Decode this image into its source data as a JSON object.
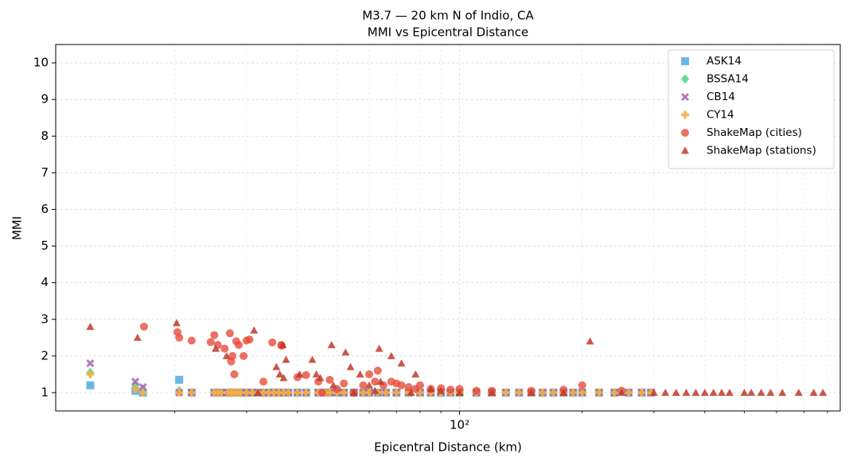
{
  "chart_data": {
    "type": "scatter",
    "title": "M3.7 — 20 km N of Indio, CA",
    "subtitle": "MMI vs Epicentral Distance",
    "x_label": "Epicentral Distance (km)",
    "y_label": "MMI",
    "xscale": "log",
    "xlim": [
      10.2,
      860
    ],
    "xticks": [
      {
        "value": 100,
        "label": "10²"
      }
    ],
    "xminorticks": [
      20,
      30,
      40,
      50,
      60,
      70,
      80,
      90,
      200,
      300,
      400,
      500,
      600,
      700,
      800
    ],
    "ylim": [
      0.5,
      10.5
    ],
    "yticks": [
      1,
      2,
      3,
      4,
      5,
      6,
      7,
      8,
      9,
      10
    ],
    "grid": true,
    "legend": "upper right",
    "series": [
      {
        "name": "ASK14",
        "color": "#5dade2",
        "marker": "square",
        "x": [
          12.4,
          16.0,
          16.7,
          20.5,
          22.0,
          25.0,
          25.5,
          26.0,
          27.0,
          27.5,
          28.0,
          28.5,
          29.0,
          30.0,
          31.0,
          32.0,
          33.0,
          34.0,
          35.0,
          36.0,
          37.0,
          38.0,
          40.0,
          42.0,
          45.0,
          47.0,
          48.0,
          50.0,
          52.0,
          55.0,
          58.0,
          60.0,
          63.0,
          66.0,
          70.0,
          75.0,
          80.0,
          85.0,
          90.0,
          95.0,
          100,
          110,
          120,
          130,
          140,
          150,
          160,
          170,
          180,
          190,
          200,
          220,
          240,
          260,
          280,
          295
        ],
        "values": [
          1.2,
          1.05,
          1.0,
          1.35,
          1.0,
          1,
          1,
          1,
          1,
          1,
          1,
          1,
          1,
          1,
          1,
          1,
          1,
          1,
          1,
          1,
          1,
          1,
          1,
          1,
          1,
          1,
          1,
          1,
          1,
          1,
          1,
          1,
          1,
          1,
          1,
          1,
          1,
          1,
          1,
          1,
          1,
          1,
          1,
          1,
          1,
          1,
          1,
          1,
          1,
          1,
          1,
          1,
          1,
          1,
          1,
          1
        ]
      },
      {
        "name": "BSSA14",
        "color": "#58d68d",
        "marker": "diamond",
        "x": [
          12.4,
          16.0,
          16.7,
          20.5,
          22.0,
          25.0,
          25.5,
          26.0,
          27.0,
          27.5,
          28.0,
          28.5,
          29.0,
          30.0,
          31.0,
          32.0,
          33.0,
          34.0,
          35.0,
          36.0,
          37.0,
          38.0,
          40.0,
          42.0,
          45.0,
          47.0,
          48.0,
          50.0,
          52.0,
          55.0,
          58.0,
          60.0,
          63.0,
          66.0,
          70.0,
          75.0,
          80.0,
          85.0,
          90.0,
          95.0,
          100,
          110,
          120,
          130,
          140,
          150,
          160,
          170,
          180,
          190,
          200,
          220,
          240,
          260,
          280,
          295
        ],
        "values": [
          1.55,
          1.2,
          1.1,
          1.05,
          1.0,
          1,
          1,
          1,
          1,
          1,
          1,
          1,
          1,
          1,
          1,
          1,
          1,
          1,
          1,
          1,
          1,
          1,
          1,
          1,
          1,
          1,
          1,
          1,
          1,
          1,
          1,
          1,
          1,
          1,
          1,
          1,
          1,
          1,
          1,
          1,
          1,
          1,
          1,
          1,
          1,
          1,
          1,
          1,
          1,
          1,
          1,
          1,
          1,
          1,
          1,
          1
        ]
      },
      {
        "name": "CB14",
        "color": "#a569bd",
        "marker": "x",
        "x": [
          12.4,
          16.0,
          16.7,
          20.5,
          22.0,
          25.0,
          25.5,
          26.0,
          27.0,
          27.5,
          28.0,
          28.5,
          29.0,
          30.0,
          31.0,
          32.0,
          33.0,
          34.0,
          35.0,
          36.0,
          37.0,
          38.0,
          40.0,
          42.0,
          45.0,
          47.0,
          48.0,
          50.0,
          52.0,
          55.0,
          58.0,
          60.0,
          63.0,
          66.0,
          70.0,
          75.0,
          80.0,
          85.0,
          90.0,
          95.0,
          100,
          110,
          120,
          130,
          140,
          150,
          160,
          170,
          180,
          190,
          200,
          220,
          240,
          260,
          280,
          295
        ],
        "values": [
          1.8,
          1.3,
          1.15,
          1.0,
          1.0,
          1,
          1,
          1,
          1,
          1,
          1,
          1,
          1,
          1,
          1,
          1,
          1,
          1,
          1,
          1,
          1,
          1,
          1,
          1,
          1,
          1,
          1,
          1,
          1,
          1,
          1,
          1,
          1,
          1,
          1,
          1,
          1,
          1,
          1,
          1,
          1,
          1,
          1,
          1,
          1,
          1,
          1,
          1,
          1,
          1,
          1,
          1,
          1,
          1,
          1,
          1
        ]
      },
      {
        "name": "CY14",
        "color": "#f5b041",
        "marker": "plus",
        "x": [
          12.4,
          16.0,
          16.7,
          20.5,
          22.0,
          25.0,
          25.5,
          26.0,
          27.0,
          27.5,
          28.0,
          28.5,
          29.0,
          30.0,
          31.0,
          32.0,
          33.0,
          34.0,
          35.0,
          36.0,
          37.0,
          38.0,
          40.0,
          42.0,
          45.0,
          47.0,
          48.0,
          50.0,
          52.0,
          55.0,
          58.0,
          60.0,
          63.0,
          66.0,
          70.0,
          75.0,
          80.0,
          85.0,
          90.0,
          95.0,
          100,
          110,
          120,
          130,
          140,
          150,
          160,
          170,
          180,
          190,
          200,
          220,
          240,
          260,
          280,
          295
        ],
        "values": [
          1.5,
          1.1,
          1.0,
          1.0,
          1.0,
          1,
          1,
          1,
          1,
          1,
          1,
          1,
          1,
          1,
          1,
          1,
          1,
          1,
          1,
          1,
          1,
          1,
          1,
          1,
          1,
          1,
          1,
          1,
          1,
          1,
          1,
          1,
          1,
          1,
          1,
          1,
          1,
          1,
          1,
          1,
          1,
          1,
          1,
          1,
          1,
          1,
          1,
          1,
          1,
          1,
          1,
          1,
          1,
          1,
          1,
          1
        ]
      },
      {
        "name": "ShakeMap (cities)",
        "color": "#e74c3c",
        "marker": "circle",
        "x": [
          16.8,
          20.3,
          20.5,
          22,
          24.5,
          25,
          25.5,
          26.5,
          27.3,
          27.5,
          27.7,
          28,
          28.3,
          28.7,
          29.5,
          30,
          30.5,
          33,
          34.7,
          36.5,
          36.6,
          40,
          42,
          45,
          46,
          48,
          50,
          52,
          55,
          58,
          60,
          62,
          63,
          65,
          68,
          70,
          72,
          75,
          78,
          80,
          85,
          90,
          95,
          100,
          110,
          120,
          150,
          180,
          200,
          250
        ],
        "values": [
          2.8,
          2.65,
          2.5,
          2.42,
          2.38,
          2.57,
          2.3,
          2.2,
          2.62,
          1.85,
          2.0,
          1.5,
          2.4,
          2.3,
          2.0,
          2.42,
          2.45,
          1.3,
          2.37,
          2.3,
          2.28,
          1.42,
          1.48,
          1.3,
          1.0,
          1.35,
          1.1,
          1.25,
          1.0,
          1.2,
          1.5,
          1.3,
          1.6,
          1.2,
          1.3,
          1.25,
          1.2,
          1.15,
          1.1,
          1.2,
          1.1,
          1.12,
          1.08,
          1.1,
          1.05,
          1.05,
          1.05,
          1.08,
          1.2,
          1.05
        ]
      },
      {
        "name": "ShakeMap (stations)",
        "color": "#c0392b",
        "marker": "triangle",
        "x": [
          12.4,
          16.2,
          20.2,
          25.2,
          26.8,
          31.3,
          32,
          35.5,
          36.2,
          37,
          36.8,
          37.5,
          40.5,
          43.5,
          44.5,
          45.5,
          48.5,
          49,
          52.5,
          54,
          55,
          57,
          60,
          62,
          63.5,
          64,
          68,
          72,
          76,
          78,
          85,
          90,
          100,
          120,
          150,
          180,
          209,
          250,
          300,
          320,
          340,
          360,
          380,
          400,
          420,
          440,
          460,
          500,
          520,
          550,
          580,
          620,
          680,
          740,
          780
        ],
        "values": [
          2.8,
          2.5,
          2.9,
          2.2,
          2.0,
          2.7,
          1.0,
          1.7,
          1.5,
          1.4,
          2.3,
          1.9,
          1.5,
          1.9,
          1.5,
          1.4,
          2.3,
          1.2,
          2.1,
          1.7,
          1.0,
          1.5,
          1.2,
          1.05,
          2.2,
          1.3,
          2.0,
          1.8,
          1.0,
          1.5,
          1.1,
          1.05,
          1.0,
          1.0,
          1.0,
          1.0,
          2.4,
          1.0,
          1.0,
          1.0,
          1.0,
          1.0,
          1.0,
          1.0,
          1.0,
          1.0,
          1.0,
          1.0,
          1.0,
          1.0,
          1.0,
          1.0,
          1.0,
          1.0,
          1.0
        ]
      }
    ]
  }
}
